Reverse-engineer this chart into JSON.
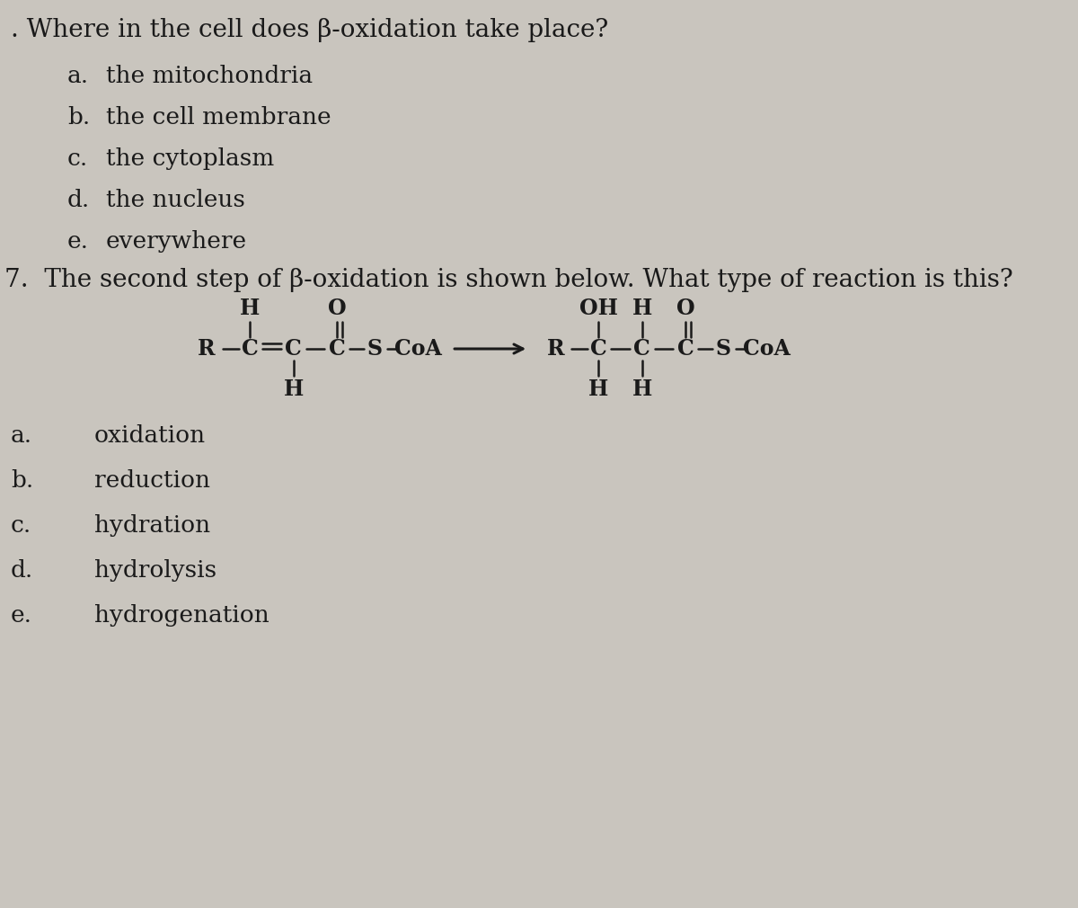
{
  "background_color": "#c9c5be",
  "text_color": "#1a1a1a",
  "q6_question": ". Where in the cell does β-oxidation take place?",
  "q6_options": [
    [
      "a.",
      "the mitochondria"
    ],
    [
      "b.",
      "the cell membrane"
    ],
    [
      "c.",
      "the cytoplasm"
    ],
    [
      "d.",
      "the nucleus"
    ],
    [
      "e.",
      "everywhere"
    ]
  ],
  "q7_question": "7.  The second step of β-oxidation is shown below. What type of reaction is this?",
  "q7_options": [
    [
      "a.",
      "oxidation"
    ],
    [
      "b.",
      "reduction"
    ],
    [
      "c.",
      "hydration"
    ],
    [
      "d.",
      "hydrolysis"
    ],
    [
      "e.",
      "hydrogenation"
    ]
  ],
  "font_size_question": 20,
  "font_size_options": 19,
  "font_size_chem": 17,
  "font_family": "DejaVu Serif"
}
